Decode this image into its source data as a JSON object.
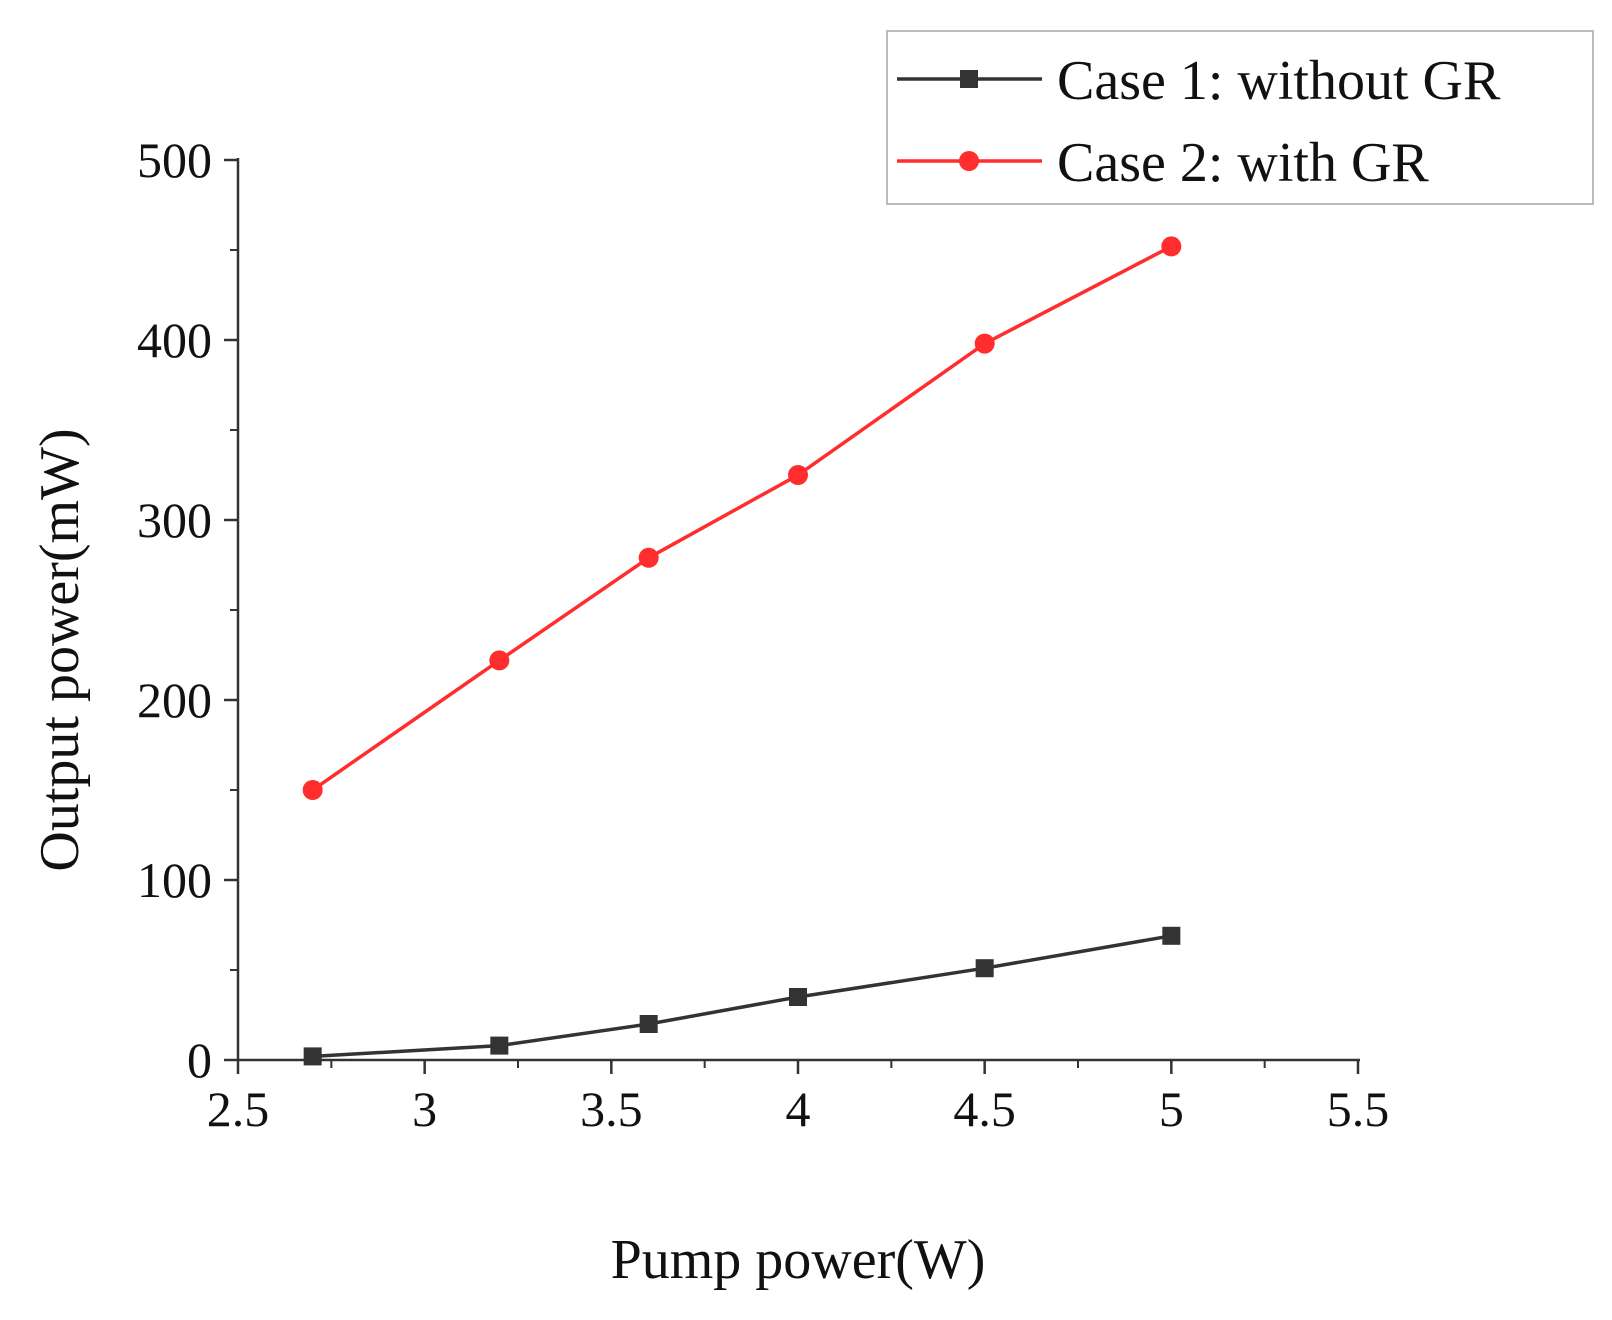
{
  "chart_data": {
    "type": "line",
    "title": "",
    "xlabel": "Pump power(W)",
    "ylabel": "Output power(mW)",
    "xlim": [
      2.5,
      5.5
    ],
    "ylim": [
      0,
      500
    ],
    "x_ticks": [
      2.5,
      3,
      3.5,
      4,
      4.5,
      5,
      5.5
    ],
    "x_tick_labels": [
      "2.5",
      "3",
      "3.5",
      "4",
      "4.5",
      "5",
      "5.5"
    ],
    "y_ticks": [
      0,
      100,
      200,
      300,
      400,
      500
    ],
    "y_tick_labels": [
      "0",
      "100",
      "200",
      "300",
      "400",
      "500"
    ],
    "grid": false,
    "legend_position": "top-right",
    "series": [
      {
        "name": "Case 1: without GR",
        "color": "#333333",
        "marker": "square",
        "x": [
          2.7,
          3.2,
          3.6,
          4.0,
          4.5,
          5.0
        ],
        "y": [
          2,
          8,
          20,
          35,
          51,
          69
        ]
      },
      {
        "name": "Case 2: with GR",
        "color": "#ff2d2d",
        "marker": "circle",
        "x": [
          2.7,
          3.2,
          3.6,
          4.0,
          4.5,
          5.0
        ],
        "y": [
          150,
          222,
          279,
          325,
          398,
          452
        ]
      }
    ]
  }
}
